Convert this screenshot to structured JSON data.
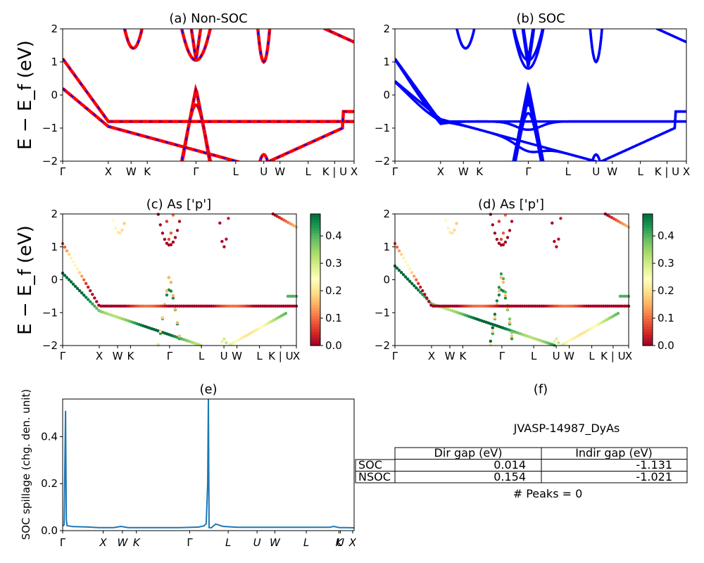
{
  "panels": {
    "a": {
      "title": "(a) Non-SOC"
    },
    "b": {
      "title": "(b) SOC"
    },
    "c": {
      "title": "(c)  As ['p']"
    },
    "d": {
      "title": "(d) As ['p']"
    },
    "e": {
      "title": "(e)"
    },
    "f": {
      "title": "(f)"
    }
  },
  "y_label_top": "E − E_f (eV)",
  "y_label_mid": "E − E_f (eV)",
  "y_label_bottom": "SOC spillage (chg. den. unit)",
  "kpath_labels": [
    "Γ",
    "X",
    "W",
    "K",
    "Γ",
    "L",
    "U",
    "W",
    "L",
    "K | U",
    "X"
  ],
  "kpath_labels_spillage": [
    "Γ",
    "X",
    "W",
    "K",
    "Γ",
    "L",
    "U",
    "W",
    "L",
    "K",
    "U",
    "X"
  ],
  "colors": {
    "nonsoc_red": "#ff0000",
    "nonsoc_blue": "#0000ff",
    "soc_blue": "#0000ff",
    "spillage": "#1f77b4"
  },
  "table": {
    "material": "JVASP-14987_DyAs",
    "header": [
      "Dir gap (eV)",
      "Indir gap (eV)"
    ],
    "rows": [
      {
        "label": "SOC",
        "dir": "0.014",
        "indir": "-1.131"
      },
      {
        "label": "NSOC",
        "dir": "0.154",
        "indir": "-1.021"
      }
    ],
    "peaks": "# Peaks = 0"
  },
  "chart_data": [
    {
      "type": "line",
      "panel": "a",
      "title": "(a) Non-SOC",
      "ylabel": "E − E_f (eV)",
      "ylim": [
        -2,
        2
      ],
      "yticks": [
        -2,
        -1,
        0,
        1,
        2
      ],
      "xticklabels": [
        "Γ",
        "X",
        "W",
        "K",
        "Γ",
        "L",
        "U",
        "W",
        "L",
        "K | U",
        "X"
      ],
      "series": [
        {
          "name": "",
          "style": "red solid with blue dashed overlay",
          "band_minima_near_X_eV": -0.95,
          "band_maximum_at_Gamma_eV": 0.2,
          "band_minimum_at_Gamma_eV": 1.05
        }
      ]
    },
    {
      "type": "line",
      "panel": "b",
      "title": "(b) SOC",
      "ylim": [
        -2,
        2
      ],
      "yticks": [
        -2,
        -1,
        0,
        1,
        2
      ],
      "xticklabels": [
        "Γ",
        "X",
        "W",
        "K",
        "Γ",
        "L",
        "U",
        "W",
        "L",
        "K | U",
        "X"
      ],
      "series": [
        {
          "name": "",
          "style": "blue solid",
          "band_maximum_at_Gamma_eV": 0.45,
          "band_minimum_at_Gamma_eV": 1.1
        }
      ]
    },
    {
      "type": "scatter",
      "panel": "c",
      "title": "(c)  As ['p']",
      "ylabel": "E − E_f (eV)",
      "ylim": [
        -2,
        2
      ],
      "yticks": [
        -2,
        -1,
        0,
        1,
        2
      ],
      "colorbar": {
        "range": [
          0.0,
          0.48
        ],
        "ticks": [
          0.0,
          0.1,
          0.2,
          0.3,
          0.4
        ],
        "cmap": "RdYlGn"
      }
    },
    {
      "type": "scatter",
      "panel": "d",
      "title": "(d) As ['p']",
      "ylim": [
        -2,
        2
      ],
      "yticks": [
        -2,
        -1,
        0,
        1,
        2
      ],
      "colorbar": {
        "range": [
          0.0,
          0.48
        ],
        "ticks": [
          0.0,
          0.1,
          0.2,
          0.3,
          0.4
        ],
        "cmap": "RdYlGn"
      }
    },
    {
      "type": "line",
      "panel": "e",
      "title": "(e)",
      "ylabel": "SOC spillage (chg. den. unit)",
      "ylim": [
        0,
        0.56
      ],
      "yticks": [
        0.0,
        0.2,
        0.4
      ],
      "xticklabels": [
        "Γ",
        "X",
        "W",
        "K",
        "Γ",
        "L",
        "U",
        "W",
        "L",
        "K",
        "U",
        "X"
      ],
      "x": [
        0,
        0.01,
        0.02,
        0.025,
        0.03,
        0.04,
        0.07,
        0.16,
        0.25,
        0.35,
        0.4,
        0.45,
        0.6,
        0.8,
        0.93,
        0.97,
        0.985,
        0.995,
        1.0,
        1.005,
        1.02,
        1.05,
        1.1,
        1.2,
        1.4,
        1.6,
        1.75,
        1.83,
        1.86,
        1.9,
        1.95,
        2.0
      ],
      "y": [
        0.02,
        0.025,
        0.51,
        0.05,
        0.022,
        0.02,
        0.017,
        0.016,
        0.013,
        0.013,
        0.018,
        0.013,
        0.013,
        0.013,
        0.015,
        0.02,
        0.03,
        0.2,
        0.56,
        0.013,
        0.012,
        0.028,
        0.018,
        0.014,
        0.014,
        0.014,
        0.014,
        0.014,
        0.018,
        0.013,
        0.013,
        0.012
      ]
    }
  ]
}
